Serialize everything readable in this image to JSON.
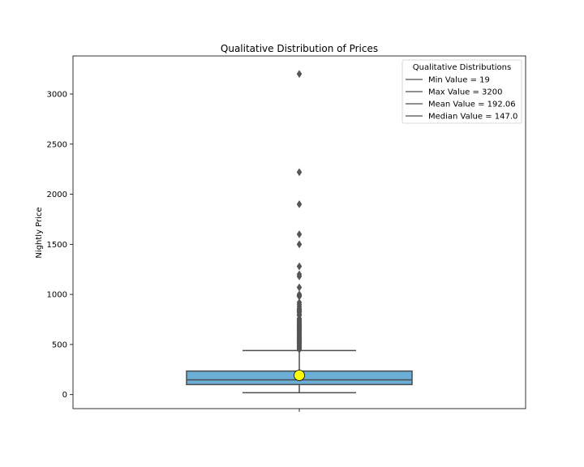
{
  "chart_data": {
    "type": "box",
    "title": "Qualitative Distribution of Prices",
    "xlabel": "",
    "ylabel": "Nightly Price",
    "ylim": [
      -140,
      3380
    ],
    "yticks": [
      0,
      500,
      1000,
      1500,
      2000,
      2500,
      3000
    ],
    "grid": false,
    "box": {
      "min": 19,
      "q1": 100,
      "median": 147,
      "q3": 235,
      "whisker_low": 19,
      "whisker_high": 440,
      "mean": 192.06,
      "max": 3200
    },
    "outliers": [
      3200,
      2220,
      1900,
      1600,
      1500,
      1280,
      1200,
      1180,
      1070,
      1000,
      990,
      980,
      920,
      900,
      880,
      860,
      850,
      840,
      830,
      820,
      800,
      790,
      760,
      750,
      740,
      730,
      720,
      710,
      700,
      690,
      680,
      670,
      660,
      650,
      640,
      630,
      620,
      610,
      600,
      590,
      580,
      570,
      560,
      550,
      540,
      530,
      520,
      510,
      500,
      490,
      480,
      470,
      460,
      450
    ],
    "colors": {
      "box_fill": "#6baed6",
      "box_edge": "#4d4d4d",
      "mean_marker": "#ffff00",
      "outlier": "#555555"
    },
    "legend": {
      "title": "Qualitative Distributions",
      "placement": "top-right",
      "entries": [
        "Min Value = 19",
        "Max Value = 3200",
        "Mean Value = 192.06",
        "Median Value = 147.0"
      ]
    }
  }
}
